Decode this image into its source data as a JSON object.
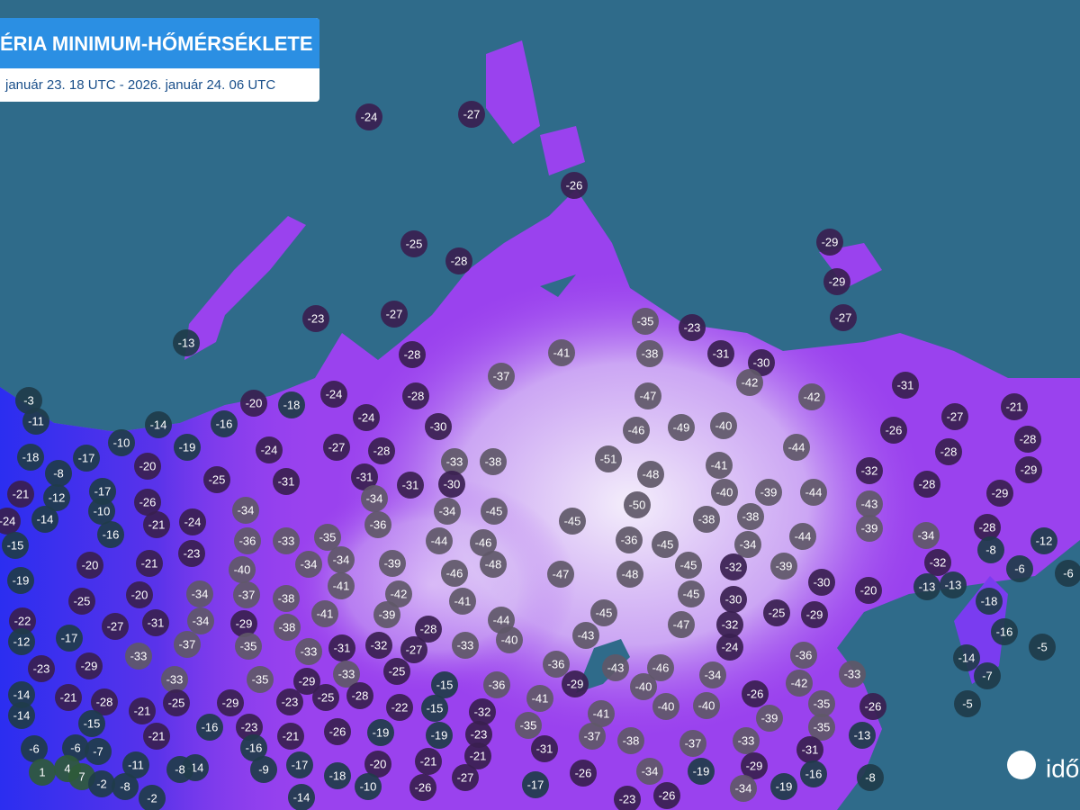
{
  "header": {
    "title": "ÉRIA MINIMUM-HŐMÉRSÉKLETE",
    "subtitle": "január 23. 18 UTC - 2026. január 24. 06 UTC"
  },
  "logo": "idő",
  "stations": [
    -24,
    -27,
    -26,
    -25,
    -29,
    -28,
    -29,
    -23,
    -27,
    -35,
    -23,
    -27,
    -13,
    -41,
    -38,
    -31,
    -30,
    -28,
    -37,
    -42,
    -31,
    -3,
    -20,
    -18,
    -24,
    -28,
    -47,
    -42,
    -21,
    -11,
    -14,
    -16,
    -24,
    -30,
    -46,
    -49,
    -40,
    -27,
    -26,
    -10,
    -19,
    -24,
    -27,
    -28,
    -44,
    -28,
    -28,
    -18,
    -17,
    -8,
    -20,
    -25,
    -31,
    -31,
    -33,
    -38,
    -51,
    -41,
    -32,
    -29,
    -21,
    -12,
    -17,
    -26,
    -34,
    -34,
    -31,
    -30,
    -48,
    -40,
    -39,
    -44,
    -28,
    -29,
    -24,
    -14,
    -10,
    -21,
    -24,
    -36,
    -34,
    -45,
    -45,
    -50,
    -38,
    -38,
    -43,
    -15,
    -16,
    -36,
    -33,
    -35,
    -44,
    -46,
    -36,
    -45,
    -34,
    -44,
    -39,
    -34,
    -28,
    -12,
    -8,
    -20,
    -21,
    -23,
    -40,
    -34,
    -34,
    -39,
    -48,
    -47,
    -48,
    -45,
    -32,
    -39,
    -32,
    -6,
    -6,
    -19,
    -41,
    -42,
    -46,
    -30,
    -20,
    -13,
    -13,
    -25,
    -20,
    -34,
    -37,
    -38,
    -41,
    -45,
    -30,
    -18,
    -22,
    -27,
    -31,
    -34,
    -29,
    -38,
    -41,
    -39,
    -28,
    -44,
    -45,
    -47,
    -32,
    -25,
    -29,
    -12,
    -17,
    -37,
    -35,
    -33,
    -31,
    -32,
    -27,
    -33,
    -40,
    -43,
    -24,
    -16,
    -5,
    -23,
    -29,
    -33,
    -36,
    -36,
    -43,
    -46,
    -14,
    -33,
    -35,
    -29,
    -33,
    -25,
    -36,
    -29,
    -34,
    -42,
    -33,
    -7,
    -14,
    -21,
    -28,
    -25,
    -29,
    -23,
    -25,
    -28,
    -22,
    -15,
    -15,
    -41,
    -40,
    -40,
    -40,
    -26,
    -35,
    -26,
    -5,
    -14,
    -21,
    -32,
    -41,
    -39,
    -15,
    -16,
    -23,
    -35,
    -35,
    -21,
    -21,
    -26,
    -19,
    -19,
    -23,
    -37,
    -38,
    -37,
    -33,
    -13,
    -6,
    -6,
    -7,
    -16,
    -31,
    -31,
    -11,
    -14,
    -9,
    -17,
    -20,
    -21,
    -21,
    -29,
    -34,
    -19,
    -16,
    1,
    4,
    7,
    -2,
    -8,
    -8,
    -18,
    -27,
    -17,
    -26,
    -8,
    -2,
    -14,
    -10,
    -26,
    -23,
    -26,
    -34,
    -19
  ]
}
